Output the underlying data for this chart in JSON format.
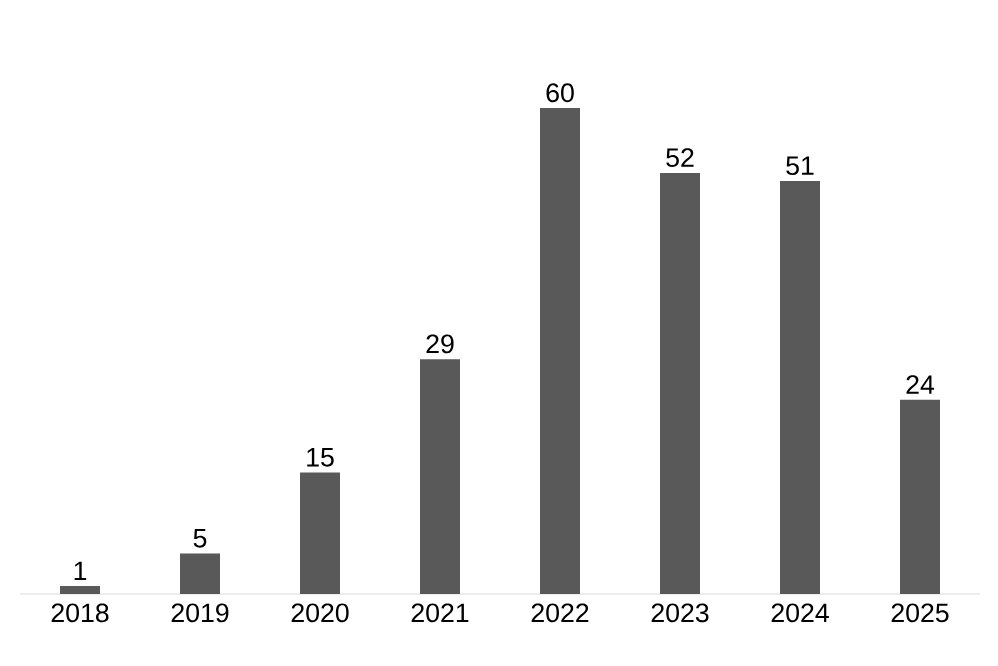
{
  "chart_data": {
    "type": "bar",
    "categories": [
      "2018",
      "2019",
      "2020",
      "2021",
      "2022",
      "2023",
      "2024",
      "2025"
    ],
    "values": [
      1,
      5,
      15,
      29,
      60,
      52,
      51,
      24
    ],
    "color": "#595959",
    "relative": false,
    "data_labels": true
  }
}
